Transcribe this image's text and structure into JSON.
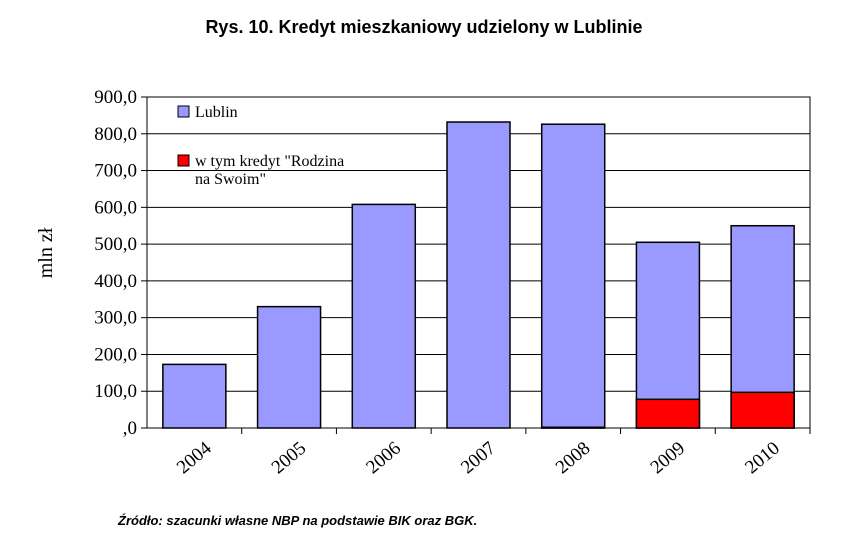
{
  "title": "Rys. 10. Kredyt mieszkaniowy udzielony w Lublinie",
  "source": "Źródło: szacunki własne NBP na podstawie BIK oraz BGK.",
  "chart_data": {
    "type": "bar",
    "title": "Rys. 10. Kredyt mieszkaniowy udzielony w Lublinie",
    "ylabel": "mln zł",
    "xlabel": "",
    "ylim": [
      0,
      900
    ],
    "yticks": [
      ",0",
      "100,0",
      "200,0",
      "300,0",
      "400,0",
      "500,0",
      "600,0",
      "700,0",
      "800,0",
      "900,0"
    ],
    "categories": [
      "2004",
      "2005",
      "2006",
      "2007",
      "2008",
      "2009",
      "2010"
    ],
    "grid": true,
    "legend_position": "top-left",
    "series": [
      {
        "name": "Lublin",
        "color": "#9999ff",
        "values": [
          173,
          330,
          608,
          832,
          826,
          505,
          550
        ]
      },
      {
        "name": "w tym kredyt \"Rodzina na Swoim\"",
        "legend_lines": [
          "w tym kredyt \"Rodzina",
          "na Swoim\""
        ],
        "color": "#ff0000",
        "values": [
          0,
          0,
          0,
          0,
          2,
          78,
          97
        ]
      }
    ]
  }
}
